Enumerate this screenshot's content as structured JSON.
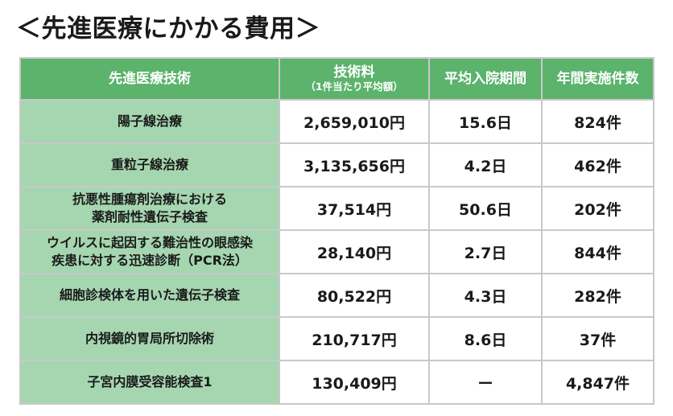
{
  "title": "＜先進医療にかかる費用＞",
  "table": {
    "headers": {
      "name": "先進医療技術",
      "fee": "技術料",
      "fee_sub": "（1件当たり平均額）",
      "stay": "平均入院期間",
      "count": "年間実施件数"
    },
    "rows": [
      {
        "name_lines": [
          "陽子線治療"
        ],
        "fee": "2,659,010円",
        "stay": "15.6日",
        "count": "824件"
      },
      {
        "name_lines": [
          "重粒子線治療"
        ],
        "fee": "3,135,656円",
        "stay": "4.2日",
        "count": "462件"
      },
      {
        "name_lines": [
          "抗悪性腫瘍剤治療における",
          "薬剤耐性遺伝子検査"
        ],
        "fee": "37,514円",
        "stay": "50.6日",
        "count": "202件"
      },
      {
        "name_lines": [
          "ウイルスに起因する難治性の眼感染",
          "疾患に対する迅速診断（PCR法）"
        ],
        "fee": "28,140円",
        "stay": "2.7日",
        "count": "844件"
      },
      {
        "name_lines": [
          "細胞診検体を用いた遺伝子検査"
        ],
        "fee": "80,522円",
        "stay": "4.3日",
        "count": "282件"
      },
      {
        "name_lines": [
          "内視鏡的胃局所切除術"
        ],
        "fee": "210,717円",
        "stay": "8.6日",
        "count": "37件"
      },
      {
        "name_lines": [
          "子宮内膜受容能検査1"
        ],
        "fee": "130,409円",
        "stay": "ー",
        "count": "4,847件"
      }
    ]
  },
  "colors": {
    "header_bg": "#5bb36c",
    "name_cell_bg": "#a5d6b0",
    "border": "#c9c9c9"
  }
}
